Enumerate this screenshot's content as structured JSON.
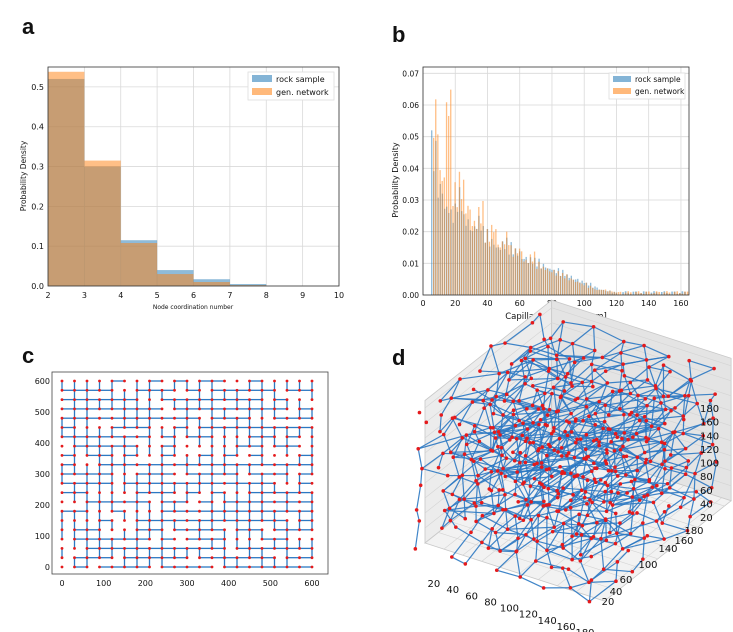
{
  "panels": {
    "a": "a",
    "b": "b",
    "c": "c",
    "d": "d"
  },
  "colors": {
    "rock": "#1f77b4",
    "gen": "#ff7f0e",
    "node": "#e41a1c",
    "edge": "#2b78c2"
  },
  "chart_data": [
    {
      "id": "a",
      "type": "bar",
      "xlabel": "Node coordination number",
      "ylabel": "Probability Density",
      "xlim": [
        2,
        10
      ],
      "ylim": [
        0,
        0.55
      ],
      "xticks": [
        "2",
        "3",
        "4",
        "5",
        "6",
        "7",
        "8",
        "9",
        "10"
      ],
      "yticks": [
        "0.0",
        "0.1",
        "0.2",
        "0.3",
        "0.4",
        "0.5"
      ],
      "legend": [
        "rock sample",
        "gen. network"
      ],
      "legend_position": "top-right",
      "bins": [
        [
          2,
          3
        ],
        [
          3,
          4
        ],
        [
          4,
          5
        ],
        [
          5,
          6
        ],
        [
          6,
          7
        ],
        [
          7,
          8
        ]
      ],
      "series": [
        {
          "name": "rock sample",
          "values": [
            0.52,
            0.3,
            0.115,
            0.04,
            0.017,
            0.005
          ]
        },
        {
          "name": "gen. network",
          "values": [
            0.538,
            0.315,
            0.108,
            0.03,
            0.01,
            0.002
          ]
        }
      ]
    },
    {
      "id": "b",
      "type": "bar",
      "xlabel": "Capillary diameter [μm]",
      "ylabel": "Probability Density",
      "xlim": [
        0,
        165
      ],
      "ylim": [
        0,
        0.072
      ],
      "xticks": [
        "0",
        "20",
        "40",
        "60",
        "80",
        "100",
        "120",
        "140",
        "160"
      ],
      "yticks": [
        "0.00",
        "0.01",
        "0.02",
        "0.03",
        "0.04",
        "0.05",
        "0.06",
        "0.07"
      ],
      "legend": [
        "rock sample",
        "gen. network"
      ],
      "legend_position": "top-right",
      "bin_width": 1,
      "series": [
        {
          "name": "rock sample",
          "values": [
            0.052,
            0.04,
            0.033,
            0.03,
            0.035,
            0.028,
            0.025,
            0.027,
            0.022,
            0.02,
            0.018,
            0.019,
            0.017,
            0.016,
            0.014,
            0.013,
            0.012,
            0.011,
            0.01,
            0.009,
            0.008,
            0.007,
            0.006,
            0.005,
            0.004,
            0.003,
            0.002,
            0.0015,
            0.001
          ]
        },
        {
          "name": "gen. network",
          "values": [
            0.066,
            0.045,
            0.072,
            0.037,
            0.04,
            0.033,
            0.027,
            0.03,
            0.022,
            0.025,
            0.019,
            0.021,
            0.016,
            0.017,
            0.013,
            0.014,
            0.011,
            0.01,
            0.009,
            0.008,
            0.007,
            0.006,
            0.005,
            0.004,
            0.003,
            0.002,
            0.002,
            0.0015,
            0.001
          ]
        }
      ]
    },
    {
      "id": "c",
      "type": "scatter",
      "description_type": "network-2d",
      "xlim": [
        0,
        600
      ],
      "ylim": [
        0,
        600
      ],
      "xticks": [
        "0",
        "100",
        "200",
        "300",
        "400",
        "500",
        "600"
      ],
      "yticks": [
        "0",
        "100",
        "200",
        "300",
        "400",
        "500",
        "600"
      ],
      "grid_nodes": 21
    },
    {
      "id": "d",
      "type": "scatter",
      "description_type": "network-3d",
      "xticks": [
        "20",
        "40",
        "60",
        "80",
        "100",
        "120",
        "140",
        "160",
        "180"
      ],
      "yticks": [
        "20",
        "40",
        "60",
        "100",
        "140",
        "160",
        "180"
      ],
      "zticks": [
        "20",
        "40",
        "60",
        "80",
        "100",
        "120",
        "140",
        "160",
        "180"
      ]
    }
  ]
}
